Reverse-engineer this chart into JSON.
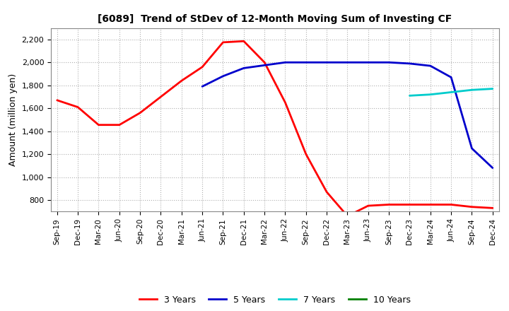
{
  "title": "[6089]  Trend of StDev of 12-Month Moving Sum of Investing CF",
  "ylabel": "Amount (million yen)",
  "background_color": "#ffffff",
  "grid_color": "#b0b0b0",
  "ylim": [
    700,
    2300
  ],
  "yticks": [
    800,
    1000,
    1200,
    1400,
    1600,
    1800,
    2000,
    2200
  ],
  "x_labels": [
    "Sep-19",
    "Dec-19",
    "Mar-20",
    "Jun-20",
    "Sep-20",
    "Dec-20",
    "Mar-21",
    "Jun-21",
    "Sep-21",
    "Dec-21",
    "Mar-22",
    "Jun-22",
    "Sep-22",
    "Dec-22",
    "Mar-23",
    "Jun-23",
    "Sep-23",
    "Dec-23",
    "Mar-24",
    "Jun-24",
    "Sep-24",
    "Dec-24"
  ],
  "series": {
    "3 Years": {
      "color": "#ff0000",
      "data_x": [
        0,
        1,
        2,
        3,
        4,
        5,
        6,
        7,
        8,
        9,
        10,
        11,
        12,
        13,
        14,
        15,
        16,
        17,
        18,
        19,
        20,
        21
      ],
      "data_y": [
        1670,
        1610,
        1455,
        1455,
        1560,
        1700,
        1840,
        1960,
        2175,
        2185,
        2000,
        1650,
        1200,
        870,
        660,
        750,
        760,
        760,
        760,
        760,
        740,
        730
      ]
    },
    "5 Years": {
      "color": "#0000cc",
      "data_x": [
        7,
        8,
        9,
        10,
        11,
        12,
        13,
        14,
        15,
        16,
        17,
        18,
        19,
        20,
        21
      ],
      "data_y": [
        1790,
        1880,
        1950,
        1975,
        2000,
        2000,
        2000,
        2000,
        2000,
        2000,
        1990,
        1970,
        1870,
        1250,
        1080
      ]
    },
    "7 Years": {
      "color": "#00cccc",
      "data_x": [
        17,
        18,
        19,
        20,
        21
      ],
      "data_y": [
        1710,
        1720,
        1740,
        1760,
        1770
      ]
    },
    "10 Years": {
      "color": "#008000",
      "data_x": [],
      "data_y": []
    }
  },
  "legend_labels": [
    "3 Years",
    "5 Years",
    "7 Years",
    "10 Years"
  ],
  "legend_colors": [
    "#ff0000",
    "#0000cc",
    "#00cccc",
    "#008000"
  ]
}
